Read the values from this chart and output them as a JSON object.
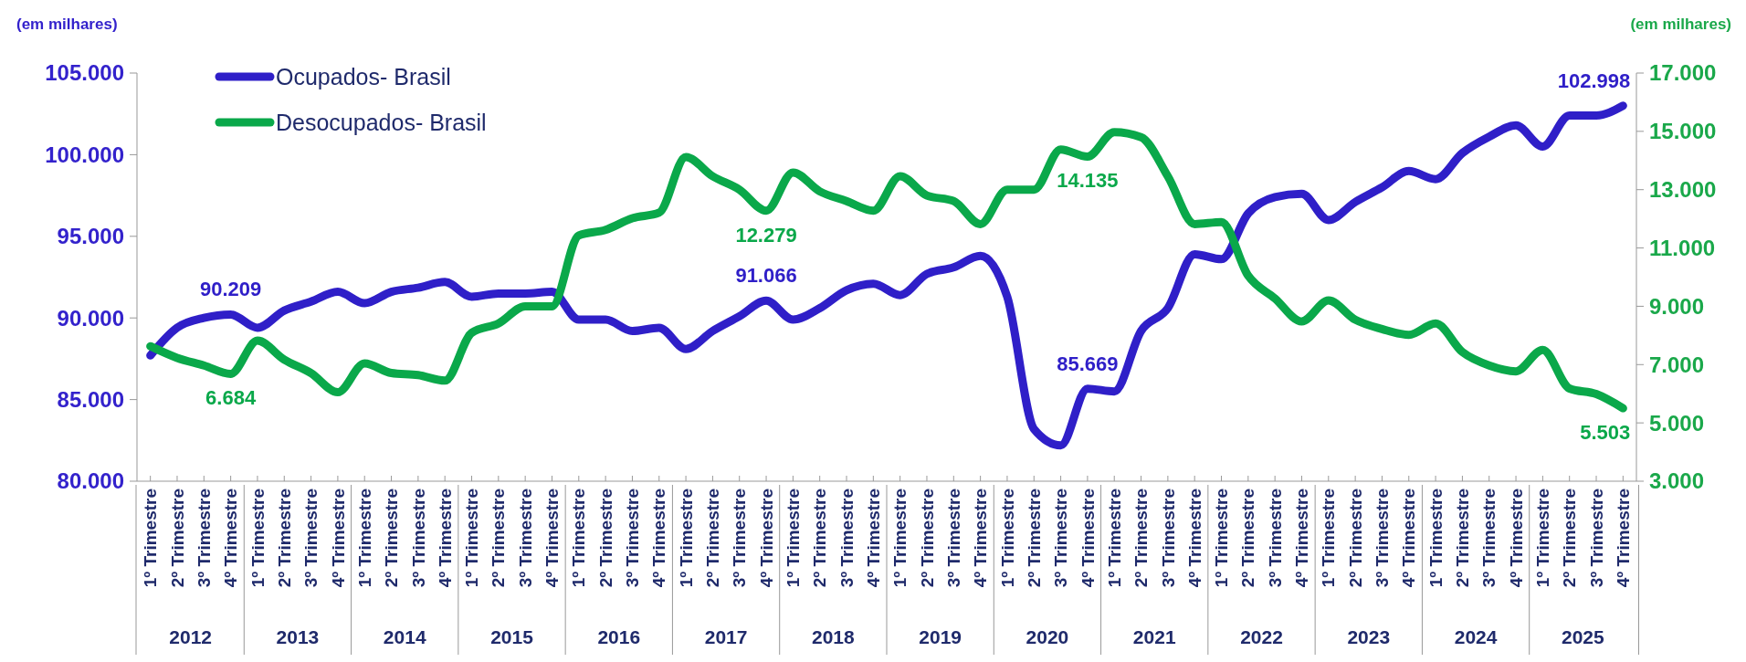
{
  "chart_data": {
    "type": "line",
    "ylabel": "(em milhares)",
    "y2label": "(em milhares)",
    "categories": [
      "1º Trimestre",
      "2º Trimestre",
      "3º Trimestre",
      "4º Trimestre",
      "1º Trimestre",
      "2º Trimestre",
      "3º Trimestre",
      "4º Trimestre",
      "1º Trimestre",
      "2º Trimestre",
      "3º Trimestre",
      "4º Trimestre",
      "1º Trimestre",
      "2º Trimestre",
      "3º Trimestre",
      "4º Trimestre",
      "1º Trimestre",
      "2º Trimestre",
      "3º Trimestre",
      "4º Trimestre",
      "1º Trimestre",
      "2º Trimestre",
      "3º Trimestre",
      "4º Trimestre",
      "1º Trimestre",
      "2º Trimestre",
      "3º Trimestre",
      "4º Trimestre",
      "1º Trimestre",
      "2º Trimestre",
      "3º Trimestre",
      "4º Trimestre",
      "1º Trimestre",
      "2º Trimestre",
      "3º Trimestre",
      "4º Trimestre",
      "1º Trimestre",
      "2º Trimestre",
      "3º Trimestre",
      "4º Trimestre",
      "1º Trimestre",
      "2º Trimestre",
      "3º Trimestre",
      "4º Trimestre",
      "1º Trimestre",
      "2º Trimestre",
      "3º Trimestre",
      "4º Trimestre",
      "1º Trimestre",
      "2º Trimestre",
      "3º Trimestre",
      "4º Trimestre",
      "1º Trimestre",
      "2º Trimestre",
      "3º Trimestre",
      "4º Trimestre"
    ],
    "annotations": [
      "2012",
      "2013",
      "2014",
      "2015",
      "2016",
      "2017",
      "2018",
      "2019",
      "2020",
      "2021",
      "2022",
      "2023",
      "2024",
      "2025"
    ],
    "series": [
      {
        "name": "Ocupados- Brasil",
        "color": "#2f1fc8",
        "values": [
          87700,
          89400,
          90000,
          90209,
          89400,
          90450,
          91000,
          91600,
          90900,
          91600,
          91850,
          92200,
          91300,
          91500,
          91500,
          91600,
          89900,
          89900,
          89200,
          89400,
          88100,
          89200,
          90100,
          91066,
          89900,
          90600,
          91700,
          92100,
          91400,
          92700,
          93100,
          93800,
          91300,
          83200,
          82200,
          85669,
          85500,
          89200,
          90600,
          93900,
          93600,
          96400,
          97400,
          97600,
          96000,
          97100,
          98000,
          99000,
          98500,
          100100,
          101100,
          101800,
          100500,
          102400,
          102400,
          102998
        ],
        "value_labels": [
          null,
          null,
          null,
          "90.209",
          null,
          null,
          null,
          null,
          null,
          null,
          null,
          null,
          null,
          null,
          null,
          null,
          null,
          null,
          null,
          null,
          null,
          null,
          null,
          "91.066",
          null,
          null,
          null,
          null,
          null,
          null,
          null,
          null,
          null,
          null,
          null,
          "85.669",
          null,
          null,
          null,
          null,
          null,
          null,
          null,
          null,
          null,
          null,
          null,
          null,
          null,
          null,
          null,
          null,
          null,
          null,
          null,
          "102.998"
        ]
      },
      {
        "name": "Desocupados- Brasil",
        "color": "#0aa84a",
        "axis": "y2",
        "values": [
          7630,
          7230,
          6970,
          6684,
          7820,
          7170,
          6710,
          6050,
          7040,
          6710,
          6640,
          6450,
          8090,
          8410,
          9000,
          9000,
          11430,
          11620,
          12020,
          12210,
          14120,
          13460,
          13000,
          12279,
          13590,
          12940,
          12610,
          12280,
          13460,
          12800,
          12610,
          11820,
          13000,
          13000,
          14380,
          14135,
          14970,
          14800,
          13460,
          11820,
          11890,
          10050,
          9270,
          8480,
          9200,
          8540,
          8220,
          8020,
          8410,
          7430,
          6970,
          6770,
          7500,
          6180,
          5990,
          5503
        ],
        "value_labels": [
          null,
          null,
          null,
          "6.684",
          null,
          null,
          null,
          null,
          null,
          null,
          null,
          null,
          null,
          null,
          null,
          null,
          null,
          null,
          null,
          null,
          null,
          null,
          null,
          "12.279",
          null,
          null,
          null,
          null,
          null,
          null,
          null,
          null,
          null,
          null,
          null,
          "14.135",
          null,
          null,
          null,
          null,
          null,
          null,
          null,
          null,
          null,
          null,
          null,
          null,
          null,
          null,
          null,
          null,
          null,
          null,
          null,
          "5.503"
        ]
      }
    ],
    "ylim": [
      80000,
      105000
    ],
    "yticks": [
      {
        "value": 80000,
        "label": "80.000"
      },
      {
        "value": 85000,
        "label": "85.000"
      },
      {
        "value": 90000,
        "label": "90.000"
      },
      {
        "value": 95000,
        "label": "95.000"
      },
      {
        "value": 100000,
        "label": "100.000"
      },
      {
        "value": 105000,
        "label": "105.000"
      }
    ],
    "y2lim": [
      3000,
      17000
    ],
    "y2ticks": [
      {
        "value": 3000,
        "label": "3.000"
      },
      {
        "value": 5000,
        "label": "5.000"
      },
      {
        "value": 7000,
        "label": "7.000"
      },
      {
        "value": 9000,
        "label": "9.000"
      },
      {
        "value": 11000,
        "label": "11.000"
      },
      {
        "value": 13000,
        "label": "13.000"
      },
      {
        "value": 15000,
        "label": "15.000"
      },
      {
        "value": 17000,
        "label": "17.000"
      }
    ],
    "legend": "top left",
    "grid": false,
    "marker": "none",
    "line_style": "solid"
  }
}
